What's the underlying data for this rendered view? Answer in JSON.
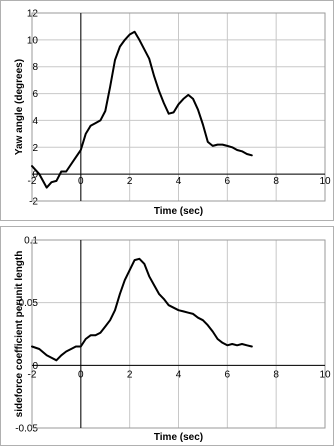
{
  "chart_data": [
    {
      "type": "line",
      "xlabel": "Time (sec)",
      "ylabel": "Yaw angle (degrees)",
      "xlim": [
        -2,
        10
      ],
      "ylim": [
        -2,
        12
      ],
      "xticks": [
        "-2",
        "0",
        "2",
        "4",
        "6",
        "8",
        "10"
      ],
      "yticks": [
        "-2",
        "0",
        "2",
        "4",
        "6",
        "8",
        "10",
        "12"
      ],
      "grid": true,
      "series": [
        {
          "x": [
            -2.0,
            -1.7,
            -1.4,
            -1.2,
            -1.0,
            -0.8,
            -0.6,
            -0.3,
            0.0,
            0.2,
            0.4,
            0.6,
            0.8,
            1.0,
            1.2,
            1.4,
            1.6,
            1.8,
            2.0,
            2.2,
            2.4,
            2.6,
            2.8,
            3.0,
            3.2,
            3.4,
            3.6,
            3.8,
            4.0,
            4.2,
            4.4,
            4.6,
            4.8,
            5.0,
            5.2,
            5.4,
            5.6,
            5.8,
            6.0,
            6.2,
            6.4,
            6.6,
            6.8,
            7.0
          ],
          "y": [
            0.6,
            0.0,
            -1.0,
            -0.6,
            -0.5,
            0.2,
            0.2,
            1.0,
            1.8,
            3.0,
            3.6,
            3.8,
            4.0,
            4.7,
            6.5,
            8.5,
            9.5,
            10.0,
            10.4,
            10.6,
            10.0,
            9.3,
            8.6,
            7.3,
            6.2,
            5.3,
            4.5,
            4.6,
            5.2,
            5.6,
            5.9,
            5.6,
            4.8,
            3.7,
            2.4,
            2.1,
            2.2,
            2.2,
            2.1,
            2.0,
            1.8,
            1.7,
            1.5,
            1.4
          ]
        }
      ]
    },
    {
      "type": "line",
      "xlabel": "Time (sec)",
      "ylabel": "sideforce coefficient perunit length",
      "xlim": [
        -2,
        10
      ],
      "ylim": [
        -0.05,
        0.1
      ],
      "xticks": [
        "-2",
        "0",
        "2",
        "4",
        "6",
        "8",
        "10"
      ],
      "yticks": [
        "-0.05",
        "0",
        "0.05",
        "0.1"
      ],
      "grid": true,
      "series": [
        {
          "x": [
            -2.0,
            -1.7,
            -1.4,
            -1.2,
            -1.0,
            -0.8,
            -0.6,
            -0.4,
            -0.2,
            0.0,
            0.2,
            0.4,
            0.6,
            0.8,
            1.0,
            1.2,
            1.4,
            1.6,
            1.8,
            2.0,
            2.2,
            2.4,
            2.6,
            2.8,
            3.0,
            3.2,
            3.4,
            3.6,
            3.8,
            4.0,
            4.2,
            4.4,
            4.6,
            4.8,
            5.0,
            5.2,
            5.4,
            5.6,
            5.8,
            6.0,
            6.2,
            6.4,
            6.6,
            6.8,
            7.0
          ],
          "y": [
            0.015,
            0.013,
            0.008,
            0.006,
            0.004,
            0.008,
            0.011,
            0.013,
            0.015,
            0.015,
            0.021,
            0.024,
            0.024,
            0.026,
            0.031,
            0.036,
            0.044,
            0.057,
            0.068,
            0.076,
            0.084,
            0.085,
            0.081,
            0.071,
            0.064,
            0.057,
            0.053,
            0.048,
            0.046,
            0.044,
            0.043,
            0.042,
            0.041,
            0.038,
            0.036,
            0.032,
            0.027,
            0.021,
            0.018,
            0.016,
            0.017,
            0.016,
            0.017,
            0.016,
            0.015
          ]
        }
      ]
    }
  ]
}
